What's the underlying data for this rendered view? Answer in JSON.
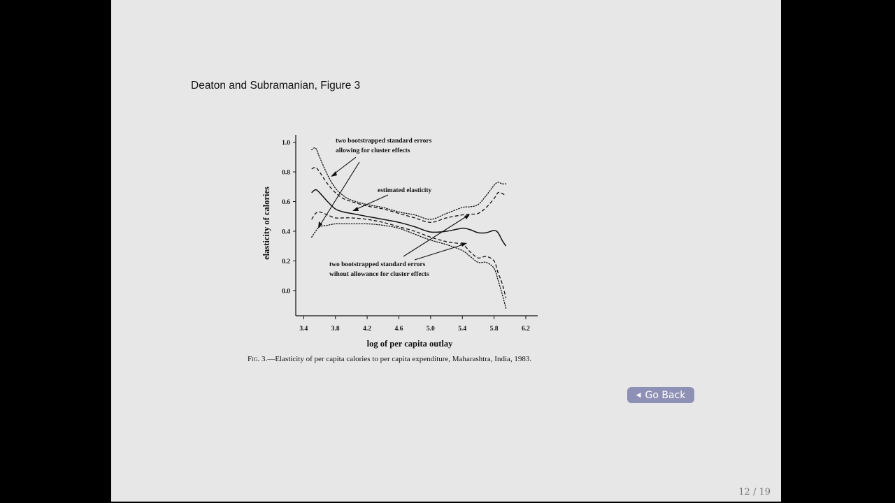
{
  "slide": {
    "title": "Deaton and Subramanian, Figure 3",
    "page_number": "12 / 19",
    "go_back_label": "Go Back",
    "go_back_icon": "left-triangle-icon"
  },
  "figure": {
    "caption_prefix": "Fig. 3.",
    "caption_text": "—Elasticity of per capita calories to per capita expenditure, Maharashtra, India, 1983.",
    "annotations": {
      "cluster_line1": "two bootstrapped standard errors",
      "cluster_line2": "allowing for cluster effects",
      "estimated": "estimated elasticity",
      "nocluster_line1": "two bootstrapped standard errors",
      "nocluster_line2": "wihout allowance for cluster effects"
    }
  },
  "chart_data": {
    "type": "line",
    "xlabel": "log of per capita outlay",
    "ylabel": "elasticity of calories",
    "xlim": [
      3.3,
      6.35
    ],
    "ylim": [
      -0.17,
      1.05
    ],
    "xticks": [
      "3.4",
      "3.8",
      "4.2",
      "4.6",
      "5.0",
      "5.4",
      "5.8",
      "6.2"
    ],
    "yticks": [
      "1.0",
      "0.8",
      "0.6",
      "0.4",
      "0.2",
      "0.0"
    ],
    "grid": false,
    "series": [
      {
        "name": "estimated elasticity",
        "style": "solid",
        "x": [
          3.5,
          3.55,
          3.6,
          3.7,
          3.8,
          3.9,
          4.0,
          4.2,
          4.4,
          4.6,
          4.8,
          5.0,
          5.2,
          5.4,
          5.5,
          5.6,
          5.7,
          5.8,
          5.85,
          5.9,
          5.95
        ],
        "y": [
          0.66,
          0.68,
          0.66,
          0.6,
          0.55,
          0.53,
          0.52,
          0.5,
          0.48,
          0.46,
          0.43,
          0.395,
          0.4,
          0.42,
          0.41,
          0.39,
          0.39,
          0.405,
          0.39,
          0.34,
          0.3
        ]
      },
      {
        "name": "upper band, no cluster",
        "style": "dashed",
        "x": [
          3.5,
          3.55,
          3.6,
          3.7,
          3.8,
          3.9,
          4.0,
          4.2,
          4.4,
          4.6,
          4.8,
          5.0,
          5.2,
          5.4,
          5.5,
          5.6,
          5.7,
          5.8,
          5.85,
          5.9,
          5.95
        ],
        "y": [
          0.82,
          0.83,
          0.8,
          0.72,
          0.66,
          0.62,
          0.6,
          0.57,
          0.55,
          0.52,
          0.49,
          0.46,
          0.49,
          0.51,
          0.515,
          0.52,
          0.56,
          0.62,
          0.66,
          0.655,
          0.64
        ]
      },
      {
        "name": "lower band, no cluster",
        "style": "dashed",
        "x": [
          3.5,
          3.55,
          3.6,
          3.7,
          3.8,
          3.9,
          4.0,
          4.2,
          4.4,
          4.6,
          4.8,
          5.0,
          5.2,
          5.4,
          5.5,
          5.6,
          5.7,
          5.8,
          5.85,
          5.9,
          5.95
        ],
        "y": [
          0.48,
          0.52,
          0.53,
          0.51,
          0.49,
          0.49,
          0.49,
          0.48,
          0.46,
          0.43,
          0.4,
          0.36,
          0.33,
          0.31,
          0.26,
          0.22,
          0.23,
          0.2,
          0.12,
          0.05,
          -0.05
        ]
      },
      {
        "name": "upper band, cluster",
        "style": "dotted",
        "x": [
          3.5,
          3.55,
          3.6,
          3.7,
          3.8,
          3.9,
          4.0,
          4.2,
          4.4,
          4.6,
          4.8,
          5.0,
          5.2,
          5.4,
          5.5,
          5.6,
          5.7,
          5.8,
          5.85,
          5.9,
          5.95
        ],
        "y": [
          0.95,
          0.96,
          0.9,
          0.78,
          0.69,
          0.64,
          0.61,
          0.58,
          0.56,
          0.53,
          0.51,
          0.48,
          0.52,
          0.56,
          0.565,
          0.58,
          0.64,
          0.71,
          0.73,
          0.72,
          0.72
        ]
      },
      {
        "name": "lower band, cluster",
        "style": "dotted",
        "x": [
          3.5,
          3.55,
          3.6,
          3.7,
          3.8,
          3.9,
          4.0,
          4.2,
          4.4,
          4.6,
          4.8,
          5.0,
          5.2,
          5.4,
          5.5,
          5.6,
          5.7,
          5.8,
          5.85,
          5.9,
          5.95
        ],
        "y": [
          0.36,
          0.4,
          0.43,
          0.44,
          0.45,
          0.45,
          0.45,
          0.45,
          0.44,
          0.42,
          0.38,
          0.34,
          0.31,
          0.27,
          0.23,
          0.19,
          0.19,
          0.15,
          0.07,
          -0.02,
          -0.12
        ]
      }
    ]
  }
}
